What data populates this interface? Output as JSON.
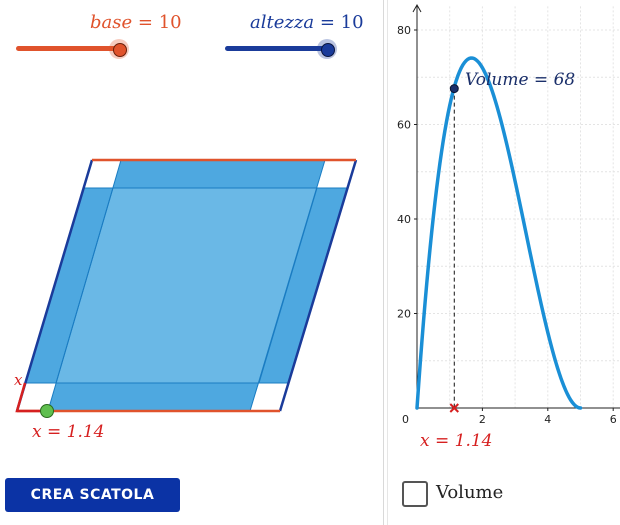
{
  "sliders": {
    "base": {
      "name": "base",
      "value": "10",
      "fraction": 1.0,
      "color": "#e0532c"
    },
    "altezza": {
      "name": "altezza",
      "value": "10",
      "fraction": 1.0,
      "color": "#1a3b9a"
    }
  },
  "equals": "=",
  "x_label": "x",
  "x_readout": "x = 1.14",
  "x_value": 1.14,
  "button_label": "CREA SCATOLA",
  "checkbox_label": "Volume",
  "checkbox_checked": false,
  "volume_label": "Volume = 68",
  "chart_data": {
    "type": "line",
    "series": [
      {
        "x": [
          0,
          0.25,
          0.5,
          0.75,
          1.0,
          1.14,
          1.25,
          1.5,
          1.67,
          2.0,
          2.25,
          2.5,
          2.75,
          3.0,
          3.25,
          3.5,
          3.75,
          4.0,
          4.25,
          4.5,
          4.75,
          5.0
        ],
        "values": [
          0,
          22.6,
          40.5,
          54.2,
          64.0,
          67.6,
          70.3,
          73.5,
          74.1,
          72.0,
          68.1,
          62.5,
          55.7,
          48.0,
          39.9,
          31.5,
          23.4,
          16.0,
          9.6,
          4.5,
          1.2,
          0
        ]
      }
    ],
    "function": "x(10-2x)^2",
    "point": {
      "x": 1.14,
      "y": 67.6
    },
    "xticks": [
      "2",
      "4",
      "6"
    ],
    "yticks": [
      "20",
      "40",
      "60",
      "80"
    ],
    "origin_label": "0",
    "xlim": [
      0,
      6.1
    ],
    "ylim": [
      0,
      85
    ],
    "grid": true,
    "line_color": "#1a8fd6",
    "point_color": "#1a2f6a",
    "marker_color": "#d62020"
  }
}
